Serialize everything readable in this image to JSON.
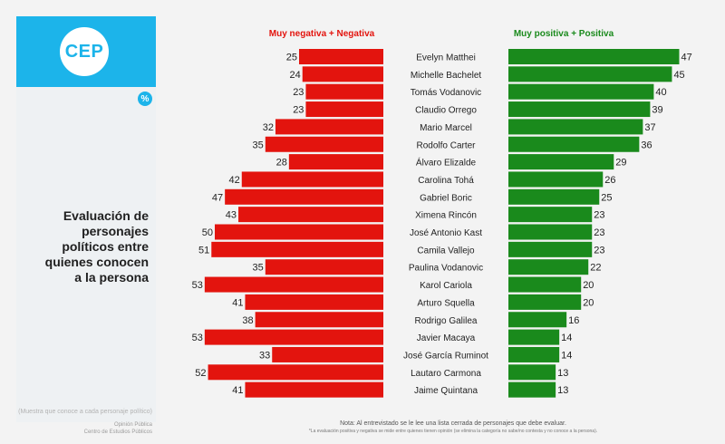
{
  "logo": {
    "text": "CEP"
  },
  "badge": "%",
  "title_lines": [
    "Evaluación de",
    "personajes",
    "políticos entre",
    "quienes conocen",
    "a la persona"
  ],
  "sample_note": "(Muestra que conoce a cada personaje político)",
  "source_lines": [
    "Opinión Pública",
    "Centro de Estudios Públicos"
  ],
  "footnote": "Nota: Al entrevistado se le lee una lista cerrada de personajes que debe evaluar.",
  "footnote_sub": "*La evaluación positiva y negativa se mide entre quienes tienen opinión (se elimina la categoría no sabe/no contesta y no conoce a la persona).",
  "colors": {
    "negative": "#e3140e",
    "positive": "#1a8a1c",
    "logo_bg": "#1cb4ea"
  },
  "chart_data": {
    "type": "bar",
    "orientation": "horizontal-diverging",
    "categories": [
      "Evelyn Matthei",
      "Michelle Bachelet",
      "Tomás Vodanovic",
      "Claudio Orrego",
      "Mario Marcel",
      "Rodolfo Carter",
      "Álvaro Elizalde",
      "Carolina Tohá",
      "Gabriel Boric",
      "Ximena Rincón",
      "José Antonio Kast",
      "Camila Vallejo",
      "Paulina Vodanovic",
      "Karol Cariola",
      "Arturo Squella",
      "Rodrigo Galilea",
      "Javier Macaya",
      "José García Ruminot",
      "Lautaro Carmona",
      "Jaime Quintana"
    ],
    "series": [
      {
        "name": "Muy negativa + Negativa",
        "values": [
          25,
          24,
          23,
          23,
          32,
          35,
          28,
          42,
          47,
          43,
          50,
          51,
          35,
          53,
          41,
          38,
          53,
          33,
          52,
          41
        ]
      },
      {
        "name": "Muy positiva + Positiva",
        "values": [
          47,
          45,
          40,
          39,
          37,
          36,
          29,
          26,
          25,
          23,
          23,
          23,
          22,
          20,
          20,
          16,
          14,
          14,
          13,
          13
        ]
      }
    ]
  }
}
